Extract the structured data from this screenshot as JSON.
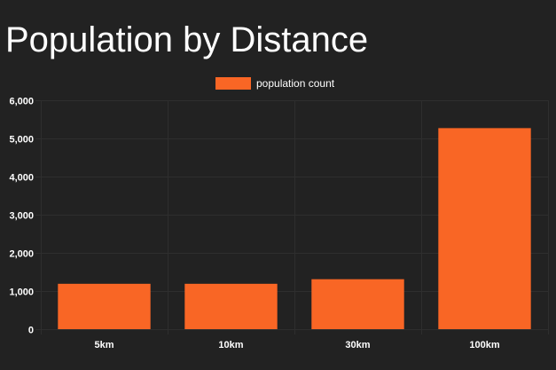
{
  "chart_data": {
    "type": "bar",
    "title": "Population by Distance",
    "categories": [
      "5km",
      "10km",
      "30km",
      "100km"
    ],
    "series": [
      {
        "name": "population count",
        "values": [
          1190,
          1190,
          1310,
          5270
        ]
      }
    ],
    "ylim": [
      0,
      6000
    ],
    "yticks": [
      "0",
      "1,000",
      "2,000",
      "3,000",
      "4,000",
      "5,000",
      "6,000"
    ],
    "xlabel": "",
    "ylabel": "",
    "legend_position": "top",
    "grid": true,
    "colors": {
      "background": "#222222",
      "bar": "#f96625",
      "grid": "#2e2e2e",
      "text": "#ffffff"
    }
  }
}
